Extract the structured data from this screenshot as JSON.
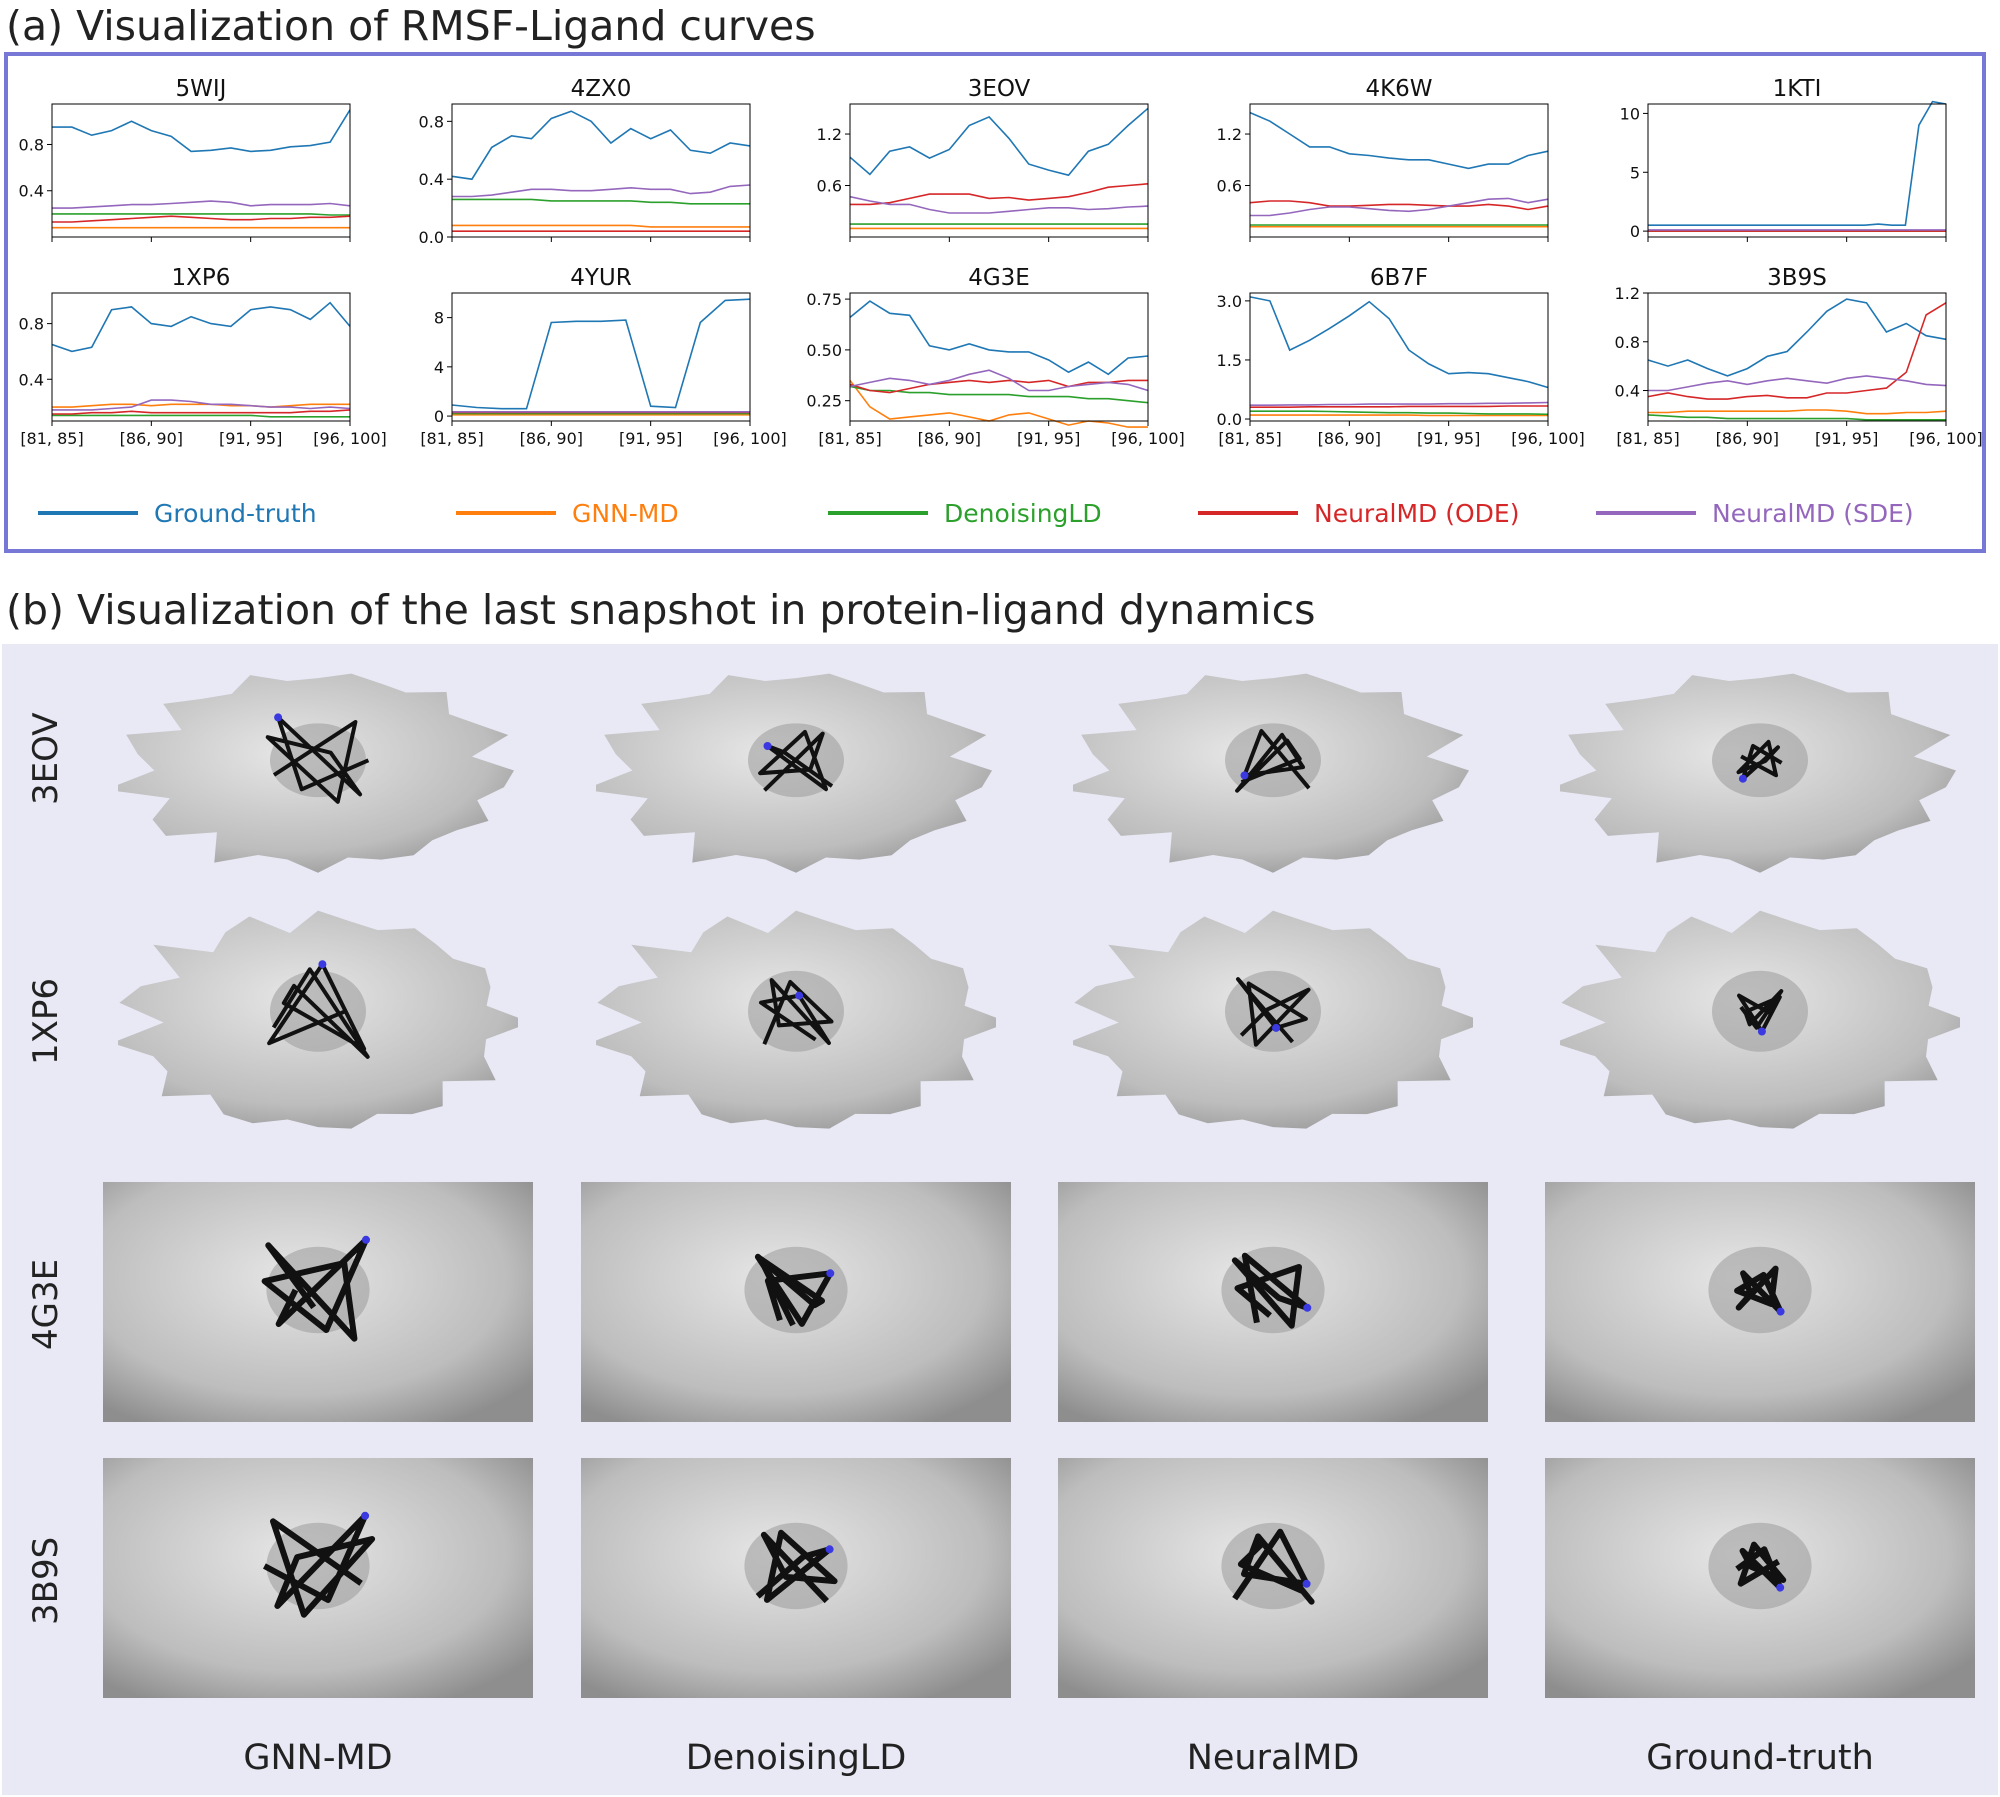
{
  "section_a_title": "(a) Visualization of RMSF-Ligand curves",
  "section_b_title": "(b) Visualization of the last snapshot in protein-ligand dynamics",
  "colors": {
    "ground_truth": "#1f77b4",
    "gnn_md": "#ff7f0e",
    "denoising_ld": "#2ca02c",
    "neuralmd_ode": "#d62728",
    "neuralmd_sde": "#9467bd",
    "frame": "#7777d6",
    "panel_b_bg": "#e8e9f5"
  },
  "chart_data": {
    "type": "line",
    "x_tick_labels": [
      "[81, 85]",
      "[86, 90]",
      "[91, 95]",
      "[96, 100]"
    ],
    "legend": [
      {
        "name": "Ground-truth",
        "color": "#1f77b4"
      },
      {
        "name": "GNN-MD",
        "color": "#ff7f0e"
      },
      {
        "name": "DenoisingLD",
        "color": "#2ca02c"
      },
      {
        "name": "NeuralMD (ODE)",
        "color": "#d62728"
      },
      {
        "name": "NeuralMD (SDE)",
        "color": "#9467bd"
      }
    ],
    "legend_placement": "bottom",
    "charts": [
      {
        "title": "5WIJ",
        "ylim": [
          0,
          1.15
        ],
        "yticks": [
          0.4,
          0.8
        ],
        "ytick_labels": [
          "0.4",
          "0.8"
        ],
        "series": [
          [
            0.95,
            0.95,
            0.88,
            0.92,
            1.0,
            0.92,
            0.87,
            0.74,
            0.75,
            0.77,
            0.74,
            0.75,
            0.78,
            0.79,
            0.82,
            1.1
          ],
          [
            0.08,
            0.08,
            0.08,
            0.08,
            0.08,
            0.08,
            0.08,
            0.08,
            0.08,
            0.08,
            0.08,
            0.08,
            0.08,
            0.08,
            0.08,
            0.08
          ],
          [
            0.2,
            0.2,
            0.2,
            0.2,
            0.2,
            0.2,
            0.2,
            0.2,
            0.2,
            0.2,
            0.2,
            0.2,
            0.2,
            0.2,
            0.19,
            0.19
          ],
          [
            0.13,
            0.13,
            0.14,
            0.15,
            0.16,
            0.17,
            0.18,
            0.17,
            0.16,
            0.15,
            0.15,
            0.16,
            0.16,
            0.17,
            0.17,
            0.18
          ],
          [
            0.25,
            0.25,
            0.26,
            0.27,
            0.28,
            0.28,
            0.29,
            0.3,
            0.31,
            0.3,
            0.27,
            0.28,
            0.28,
            0.28,
            0.29,
            0.27
          ]
        ]
      },
      {
        "title": "4ZX0",
        "ylim": [
          0,
          0.92
        ],
        "yticks": [
          0,
          0.4,
          0.8
        ],
        "ytick_labels": [
          "0.0",
          "0.4",
          "0.8"
        ],
        "series": [
          [
            0.42,
            0.4,
            0.62,
            0.7,
            0.68,
            0.82,
            0.87,
            0.8,
            0.65,
            0.75,
            0.68,
            0.74,
            0.6,
            0.58,
            0.65,
            0.63
          ],
          [
            0.08,
            0.08,
            0.08,
            0.08,
            0.08,
            0.08,
            0.08,
            0.08,
            0.08,
            0.08,
            0.07,
            0.07,
            0.07,
            0.07,
            0.07,
            0.07
          ],
          [
            0.26,
            0.26,
            0.26,
            0.26,
            0.26,
            0.25,
            0.25,
            0.25,
            0.25,
            0.25,
            0.24,
            0.24,
            0.23,
            0.23,
            0.23,
            0.23
          ],
          [
            0.04,
            0.04,
            0.04,
            0.04,
            0.04,
            0.04,
            0.04,
            0.04,
            0.04,
            0.04,
            0.04,
            0.04,
            0.04,
            0.04,
            0.04,
            0.04
          ],
          [
            0.28,
            0.28,
            0.29,
            0.31,
            0.33,
            0.33,
            0.32,
            0.32,
            0.33,
            0.34,
            0.33,
            0.33,
            0.3,
            0.31,
            0.35,
            0.36
          ]
        ]
      },
      {
        "title": "3EOV",
        "ylim": [
          0,
          1.55
        ],
        "yticks": [
          0.6,
          1.2
        ],
        "ytick_labels": [
          "0.6",
          "1.2"
        ],
        "series": [
          [
            0.93,
            0.73,
            1.0,
            1.05,
            0.92,
            1.02,
            1.3,
            1.4,
            1.15,
            0.85,
            0.78,
            0.72,
            1.0,
            1.08,
            1.3,
            1.5
          ],
          [
            0.1,
            0.1,
            0.1,
            0.1,
            0.1,
            0.1,
            0.1,
            0.1,
            0.1,
            0.1,
            0.1,
            0.1,
            0.1,
            0.1,
            0.1,
            0.1
          ],
          [
            0.15,
            0.15,
            0.15,
            0.15,
            0.15,
            0.15,
            0.15,
            0.15,
            0.15,
            0.15,
            0.15,
            0.15,
            0.15,
            0.15,
            0.15,
            0.15
          ],
          [
            0.38,
            0.38,
            0.4,
            0.45,
            0.5,
            0.5,
            0.5,
            0.45,
            0.46,
            0.43,
            0.45,
            0.47,
            0.52,
            0.58,
            0.6,
            0.62
          ],
          [
            0.47,
            0.42,
            0.38,
            0.38,
            0.32,
            0.28,
            0.28,
            0.28,
            0.3,
            0.32,
            0.34,
            0.34,
            0.32,
            0.33,
            0.35,
            0.36
          ]
        ]
      },
      {
        "title": "4K6W",
        "ylim": [
          0,
          1.55
        ],
        "yticks": [
          0.6,
          1.2
        ],
        "ytick_labels": [
          "0.6",
          "1.2"
        ],
        "series": [
          [
            1.45,
            1.35,
            1.2,
            1.05,
            1.05,
            0.97,
            0.95,
            0.92,
            0.9,
            0.9,
            0.85,
            0.8,
            0.85,
            0.85,
            0.95,
            1.0
          ],
          [
            0.12,
            0.12,
            0.12,
            0.12,
            0.12,
            0.12,
            0.12,
            0.12,
            0.12,
            0.12,
            0.12,
            0.12,
            0.12,
            0.12,
            0.12,
            0.12
          ],
          [
            0.14,
            0.14,
            0.14,
            0.14,
            0.14,
            0.14,
            0.14,
            0.14,
            0.14,
            0.14,
            0.14,
            0.14,
            0.14,
            0.14,
            0.14,
            0.14
          ],
          [
            0.4,
            0.42,
            0.42,
            0.4,
            0.36,
            0.36,
            0.37,
            0.38,
            0.38,
            0.37,
            0.36,
            0.36,
            0.38,
            0.36,
            0.32,
            0.36
          ],
          [
            0.25,
            0.25,
            0.28,
            0.32,
            0.35,
            0.35,
            0.33,
            0.31,
            0.3,
            0.32,
            0.36,
            0.4,
            0.44,
            0.45,
            0.4,
            0.44
          ]
        ]
      },
      {
        "title": "1KTI",
        "ylim": [
          -0.5,
          10.8
        ],
        "yticks": [
          0,
          5,
          10
        ],
        "ytick_labels": [
          "0",
          "5",
          "10"
        ],
        "series": [
          [
            0.5,
            0.5,
            0.5,
            0.5,
            0.5,
            0.5,
            0.5,
            0.5,
            0.5,
            0.5,
            0.5,
            0.5,
            0.5,
            0.5,
            0.5,
            0.5,
            0.5,
            0.6,
            0.5,
            0.5,
            9.0,
            11.0,
            10.8
          ],
          [
            0.0,
            0.0,
            0.0,
            0.0,
            0.0,
            0.0,
            0.0,
            0.0,
            0.0,
            0.0,
            0.0,
            0.0,
            0.0,
            0.0,
            0.0,
            0.0,
            0.0,
            0.0,
            0.0,
            0.0,
            0.0,
            0.0,
            0.0
          ],
          [
            0.0,
            0.0,
            0.0,
            0.0,
            0.0,
            0.0,
            0.0,
            0.0,
            0.0,
            0.0,
            0.0,
            0.0,
            0.0,
            0.0,
            0.0,
            0.0,
            0.0,
            0.0,
            0.0,
            0.0,
            0.0,
            0.0,
            0.0
          ],
          [
            0.0,
            0.0,
            0.0,
            0.0,
            0.0,
            0.0,
            0.0,
            0.0,
            0.0,
            0.0,
            0.0,
            0.0,
            0.0,
            0.0,
            0.0,
            0.0,
            0.0,
            0.0,
            0.0,
            0.0,
            0.0,
            0.0,
            0.0
          ],
          [
            0.1,
            0.1,
            0.1,
            0.1,
            0.1,
            0.1,
            0.1,
            0.1,
            0.1,
            0.1,
            0.1,
            0.1,
            0.1,
            0.1,
            0.1,
            0.1,
            0.1,
            0.1,
            0.1,
            0.1,
            0.1,
            0.1,
            0.1
          ]
        ]
      },
      {
        "title": "1XP6",
        "ylim": [
          0.1,
          1.02
        ],
        "yticks": [
          0.4,
          0.8
        ],
        "ytick_labels": [
          "0.4",
          "0.8"
        ],
        "series": [
          [
            0.65,
            0.6,
            0.63,
            0.9,
            0.92,
            0.8,
            0.78,
            0.85,
            0.8,
            0.78,
            0.9,
            0.92,
            0.9,
            0.83,
            0.95,
            0.78
          ],
          [
            0.2,
            0.2,
            0.21,
            0.22,
            0.22,
            0.21,
            0.22,
            0.22,
            0.22,
            0.21,
            0.21,
            0.2,
            0.21,
            0.22,
            0.22,
            0.22
          ],
          [
            0.14,
            0.14,
            0.14,
            0.14,
            0.14,
            0.14,
            0.14,
            0.14,
            0.14,
            0.14,
            0.14,
            0.13,
            0.13,
            0.13,
            0.13,
            0.13
          ],
          [
            0.15,
            0.15,
            0.16,
            0.16,
            0.17,
            0.16,
            0.16,
            0.16,
            0.16,
            0.16,
            0.16,
            0.16,
            0.16,
            0.17,
            0.17,
            0.18
          ],
          [
            0.18,
            0.18,
            0.18,
            0.19,
            0.2,
            0.25,
            0.25,
            0.24,
            0.22,
            0.22,
            0.21,
            0.2,
            0.2,
            0.19,
            0.2,
            0.19
          ]
        ]
      },
      {
        "title": "4YUR",
        "ylim": [
          -0.4,
          10.0
        ],
        "yticks": [
          0,
          4,
          8
        ],
        "ytick_labels": [
          "0",
          "4",
          "8"
        ],
        "series": [
          [
            0.9,
            0.7,
            0.6,
            0.6,
            7.6,
            7.7,
            7.7,
            7.8,
            0.8,
            0.7,
            7.6,
            9.4,
            9.5
          ],
          [
            0.1,
            0.1,
            0.1,
            0.1,
            0.1,
            0.1,
            0.1,
            0.1,
            0.1,
            0.1,
            0.1,
            0.1,
            0.1
          ],
          [
            0.2,
            0.2,
            0.2,
            0.2,
            0.2,
            0.2,
            0.2,
            0.2,
            0.2,
            0.2,
            0.2,
            0.2,
            0.2
          ],
          [
            0.3,
            0.3,
            0.3,
            0.3,
            0.3,
            0.3,
            0.3,
            0.3,
            0.3,
            0.3,
            0.3,
            0.3,
            0.3
          ],
          [
            0.35,
            0.35,
            0.35,
            0.35,
            0.35,
            0.35,
            0.35,
            0.35,
            0.35,
            0.35,
            0.35,
            0.35,
            0.35
          ]
        ]
      },
      {
        "title": "4G3E",
        "ylim": [
          0.15,
          0.78
        ],
        "yticks": [
          0.25,
          0.5,
          0.75
        ],
        "ytick_labels": [
          "0.25",
          "0.50",
          "0.75"
        ],
        "series": [
          [
            0.66,
            0.74,
            0.68,
            0.67,
            0.52,
            0.5,
            0.53,
            0.5,
            0.49,
            0.49,
            0.45,
            0.39,
            0.44,
            0.38,
            0.46,
            0.47
          ],
          [
            0.35,
            0.22,
            0.16,
            0.17,
            0.18,
            0.19,
            0.17,
            0.15,
            0.18,
            0.19,
            0.16,
            0.13,
            0.15,
            0.14,
            0.12,
            0.12
          ],
          [
            0.32,
            0.3,
            0.3,
            0.29,
            0.29,
            0.28,
            0.28,
            0.28,
            0.28,
            0.27,
            0.27,
            0.27,
            0.26,
            0.26,
            0.25,
            0.24
          ],
          [
            0.33,
            0.3,
            0.29,
            0.31,
            0.33,
            0.34,
            0.35,
            0.34,
            0.35,
            0.34,
            0.35,
            0.32,
            0.34,
            0.34,
            0.35,
            0.35
          ],
          [
            0.32,
            0.34,
            0.36,
            0.35,
            0.33,
            0.35,
            0.38,
            0.4,
            0.36,
            0.3,
            0.3,
            0.32,
            0.33,
            0.34,
            0.33,
            0.3
          ]
        ]
      },
      {
        "title": "6B7F",
        "ylim": [
          -0.05,
          3.2
        ],
        "yticks": [
          0,
          1.5,
          3.0
        ],
        "ytick_labels": [
          "0.0",
          "1.5",
          "3.0"
        ],
        "series": [
          [
            3.1,
            3.0,
            1.75,
            2.0,
            2.3,
            2.62,
            2.98,
            2.55,
            1.75,
            1.4,
            1.15,
            1.18,
            1.15,
            1.05,
            0.95,
            0.8
          ],
          [
            0.1,
            0.1,
            0.1,
            0.1,
            0.1,
            0.1,
            0.1,
            0.1,
            0.1,
            0.09,
            0.09,
            0.09,
            0.09,
            0.09,
            0.09,
            0.09
          ],
          [
            0.2,
            0.2,
            0.2,
            0.2,
            0.19,
            0.18,
            0.17,
            0.16,
            0.16,
            0.15,
            0.15,
            0.14,
            0.13,
            0.13,
            0.13,
            0.12
          ],
          [
            0.3,
            0.3,
            0.3,
            0.31,
            0.31,
            0.31,
            0.31,
            0.31,
            0.32,
            0.32,
            0.32,
            0.32,
            0.32,
            0.33,
            0.33,
            0.33
          ],
          [
            0.35,
            0.35,
            0.36,
            0.36,
            0.37,
            0.37,
            0.38,
            0.38,
            0.38,
            0.38,
            0.39,
            0.39,
            0.4,
            0.4,
            0.41,
            0.42
          ]
        ]
      },
      {
        "title": "3B9S",
        "ylim": [
          0.15,
          1.2
        ],
        "yticks": [
          0.4,
          0.8,
          1.2
        ],
        "ytick_labels": [
          "0.4",
          "0.8",
          "1.2"
        ],
        "series": [
          [
            0.65,
            0.6,
            0.65,
            0.58,
            0.52,
            0.58,
            0.68,
            0.72,
            0.88,
            1.05,
            1.15,
            1.12,
            0.88,
            0.95,
            0.85,
            0.82
          ],
          [
            0.22,
            0.22,
            0.23,
            0.23,
            0.23,
            0.23,
            0.23,
            0.23,
            0.24,
            0.24,
            0.23,
            0.21,
            0.21,
            0.22,
            0.22,
            0.23
          ],
          [
            0.2,
            0.19,
            0.18,
            0.18,
            0.17,
            0.17,
            0.17,
            0.17,
            0.17,
            0.17,
            0.17,
            0.16,
            0.16,
            0.16,
            0.16,
            0.16
          ],
          [
            0.35,
            0.38,
            0.35,
            0.33,
            0.33,
            0.35,
            0.36,
            0.34,
            0.34,
            0.38,
            0.38,
            0.4,
            0.42,
            0.55,
            1.02,
            1.12
          ],
          [
            0.4,
            0.4,
            0.43,
            0.46,
            0.48,
            0.45,
            0.48,
            0.5,
            0.48,
            0.46,
            0.5,
            0.52,
            0.5,
            0.48,
            0.45,
            0.44
          ]
        ]
      }
    ]
  },
  "snapshots": {
    "rows": [
      "3EOV",
      "1XP6",
      "4G3E",
      "3B9S"
    ],
    "columns": [
      "GNN-MD",
      "DenoisingLD",
      "NeuralMD",
      "Ground-truth"
    ]
  }
}
